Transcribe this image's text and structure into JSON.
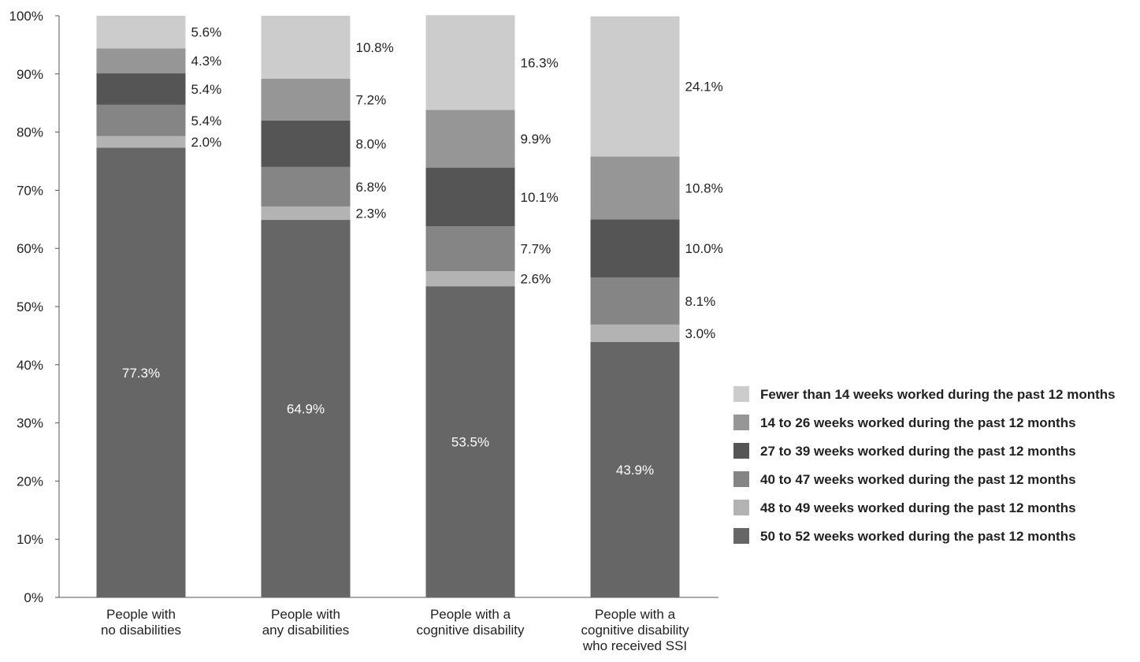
{
  "chart_data": {
    "type": "bar",
    "stacked": true,
    "categories": [
      [
        "People with",
        "no disabilities"
      ],
      [
        "People with",
        "any  disabilities"
      ],
      [
        "People with a",
        "cognitive disability"
      ],
      [
        "People with a",
        "cognitive disability",
        "who received SSI"
      ]
    ],
    "series": [
      {
        "name": "50 to 52 weeks worked during the past 12 months",
        "color": "#666666",
        "values": [
          77.3,
          64.9,
          53.5,
          43.9
        ],
        "labels": [
          "77.3%",
          "64.9%",
          "53.5%",
          "43.9%"
        ]
      },
      {
        "name": "48 to 49 weeks worked during the past 12 months",
        "color": "#b3b3b3",
        "values": [
          2.0,
          2.3,
          2.6,
          3.0
        ],
        "labels": [
          "2.0%",
          "2.3%",
          "2.6%",
          "3.0%"
        ]
      },
      {
        "name": "40 to 47 weeks worked during the past 12 months",
        "color": "#858585",
        "values": [
          5.4,
          6.8,
          7.7,
          8.1
        ],
        "labels": [
          "5.4%",
          "6.8%",
          "7.7%",
          "8.1%"
        ]
      },
      {
        "name": "27 to 39 weeks worked during the past 12 months",
        "color": "#555555",
        "values": [
          5.4,
          8.0,
          10.1,
          10.0
        ],
        "labels": [
          "5.4%",
          "8.0%",
          "10.1%",
          "10.0%"
        ]
      },
      {
        "name": "14 to 26 weeks worked during the past 12 months",
        "color": "#969696",
        "values": [
          4.3,
          7.2,
          9.9,
          10.8
        ],
        "labels": [
          "4.3%",
          "7.2%",
          "9.9%",
          "10.8%"
        ]
      },
      {
        "name": "Fewer than 14 weeks worked during the past 12 months",
        "color": "#cccccc",
        "values": [
          5.6,
          10.8,
          16.3,
          24.1
        ],
        "labels": [
          "5.6%",
          "10.8%",
          "16.3%",
          "24.1%"
        ]
      }
    ],
    "legend_order": [
      5,
      4,
      3,
      2,
      1,
      0
    ],
    "yticks": [
      "0%",
      "10%",
      "20%",
      "30%",
      "40%",
      "50%",
      "60%",
      "70%",
      "80%",
      "90%",
      "100%"
    ],
    "ylim": [
      0,
      100
    ],
    "grid": false,
    "legend_position": "right",
    "title": "",
    "xlabel": "",
    "ylabel": ""
  }
}
